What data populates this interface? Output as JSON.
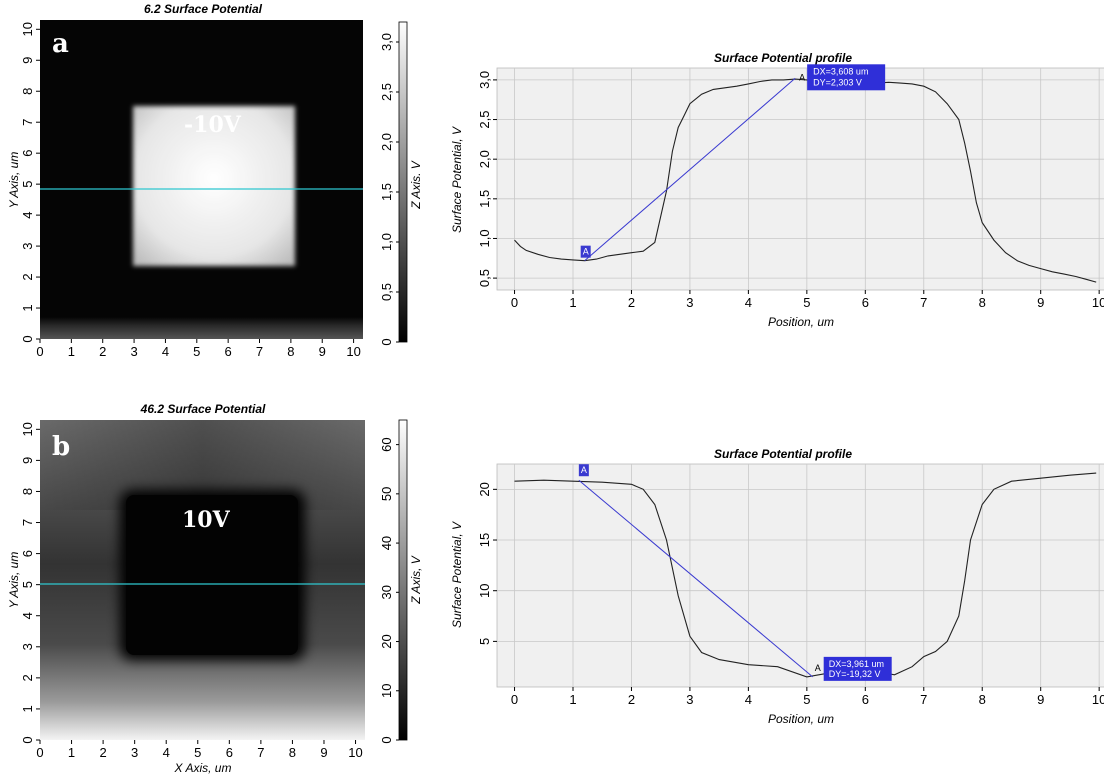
{
  "panel_a": {
    "letter": "a",
    "map_label": "-10V",
    "colorbar_max": 3.0
  },
  "panel_b": {
    "letter": "b",
    "map_label": "10V",
    "colorbar_max": 65
  },
  "chart_data": [
    {
      "type": "heatmap",
      "title": "6.2 Surface Potential",
      "xlabel": "",
      "ylabel": "Y Axis, um",
      "zlabel": "Z Axis, V",
      "xlim": [
        0,
        10.3
      ],
      "ylim": [
        0,
        10.3
      ],
      "x_ticks": [
        "0",
        "1",
        "2",
        "3",
        "4",
        "5",
        "6",
        "7",
        "8",
        "9",
        "10"
      ],
      "y_ticks": [
        "0",
        "1",
        "2",
        "3",
        "4",
        "5",
        "6",
        "7",
        "8",
        "9",
        "10"
      ],
      "z_ticks": [
        "0",
        "0,5",
        "1,0",
        "1,5",
        "2,0",
        "2,5",
        "3,0"
      ],
      "zlim": [
        0,
        3.2
      ],
      "square": {
        "x0": 2.8,
        "x1": 7.9,
        "y0": 2.4,
        "y1": 7.5,
        "value": 3.0
      },
      "background_value": 0.05,
      "scan_line_y": 4.8,
      "grid": false
    },
    {
      "type": "line",
      "title": "Surface Potential profile",
      "xlabel": "Position, um",
      "ylabel": "Surface Potential, V",
      "xlim": [
        -0.3,
        10.1
      ],
      "ylim": [
        0.35,
        3.15
      ],
      "x_ticks": [
        "0",
        "1",
        "2",
        "3",
        "4",
        "5",
        "6",
        "7",
        "8",
        "9",
        "10"
      ],
      "y_ticks": [
        "0,5",
        "1,0",
        "1,5",
        "2,0",
        "2,5",
        "3,0"
      ],
      "y_tick_values": [
        0.5,
        1.0,
        1.5,
        2.0,
        2.5,
        3.0
      ],
      "grid": true,
      "series": [
        {
          "x": [
            0.0,
            0.1,
            0.2,
            0.4,
            0.6,
            0.8,
            1.0,
            1.2,
            1.4,
            1.6,
            1.8,
            2.0,
            2.2,
            2.4,
            2.6,
            2.7,
            2.8,
            2.9,
            3.0,
            3.2,
            3.4,
            3.6,
            3.8,
            4.0,
            4.2,
            4.4,
            4.6,
            4.8,
            5.0,
            5.2,
            5.4,
            5.6,
            5.8,
            6.0,
            6.2,
            6.4,
            6.6,
            6.8,
            7.0,
            7.2,
            7.4,
            7.6,
            7.7,
            7.8,
            7.9,
            8.0,
            8.2,
            8.4,
            8.6,
            8.8,
            9.0,
            9.2,
            9.4,
            9.6,
            9.8,
            9.95
          ],
          "y": [
            0.98,
            0.9,
            0.85,
            0.8,
            0.76,
            0.74,
            0.73,
            0.72,
            0.74,
            0.78,
            0.8,
            0.82,
            0.84,
            0.95,
            1.6,
            2.1,
            2.4,
            2.55,
            2.7,
            2.82,
            2.88,
            2.9,
            2.92,
            2.95,
            2.98,
            3.0,
            3.0,
            3.01,
            3.0,
            2.98,
            2.97,
            2.98,
            2.98,
            2.97,
            2.96,
            2.97,
            2.96,
            2.95,
            2.92,
            2.85,
            2.7,
            2.5,
            2.2,
            1.85,
            1.45,
            1.2,
            0.98,
            0.82,
            0.72,
            0.66,
            0.62,
            0.58,
            0.55,
            0.52,
            0.48,
            0.45
          ]
        }
      ],
      "cursor": {
        "x1": 1.2,
        "y1": 0.72,
        "x2": 4.8,
        "y2": 3.02,
        "marker1": "A",
        "marker2": "A",
        "dx_text": "DX=3,608 um",
        "dy_text": "DY=2,303 V"
      }
    },
    {
      "type": "heatmap",
      "title": "46.2 Surface Potential",
      "xlabel": "X Axis, um",
      "ylabel": "Y Axis, um",
      "zlabel": "Z Axis, V",
      "xlim": [
        0,
        10.3
      ],
      "ylim": [
        0,
        10.3
      ],
      "x_ticks": [
        "0",
        "1",
        "2",
        "3",
        "4",
        "5",
        "6",
        "7",
        "8",
        "9",
        "10"
      ],
      "y_ticks": [
        "0",
        "1",
        "2",
        "3",
        "4",
        "5",
        "6",
        "7",
        "8",
        "9",
        "10"
      ],
      "z_ticks": [
        "0",
        "10",
        "20",
        "30",
        "40",
        "50",
        "60"
      ],
      "zlim": [
        0,
        65
      ],
      "square": {
        "x0": 2.6,
        "x1": 7.9,
        "y0": 2.5,
        "y1": 7.7,
        "value": 2
      },
      "background_value": 40,
      "scan_line_y": 4.8,
      "grid": false
    },
    {
      "type": "line",
      "title": "Surface Potential profile",
      "xlabel": "Position, um",
      "ylabel": "Surface Potential, V",
      "xlim": [
        -0.3,
        10.1
      ],
      "ylim": [
        0.5,
        22.5
      ],
      "x_ticks": [
        "0",
        "1",
        "2",
        "3",
        "4",
        "5",
        "6",
        "7",
        "8",
        "9",
        "10"
      ],
      "y_ticks": [
        "5",
        "10",
        "15",
        "20"
      ],
      "y_tick_values": [
        5,
        10,
        15,
        20
      ],
      "grid": true,
      "series": [
        {
          "x": [
            0.0,
            0.5,
            1.0,
            1.5,
            2.0,
            2.2,
            2.4,
            2.6,
            2.8,
            3.0,
            3.2,
            3.5,
            4.0,
            4.5,
            5.0,
            5.3,
            5.6,
            5.8,
            6.0,
            6.2,
            6.5,
            6.8,
            7.0,
            7.2,
            7.4,
            7.6,
            7.7,
            7.8,
            8.0,
            8.2,
            8.5,
            9.0,
            9.5,
            9.95
          ],
          "y": [
            20.8,
            20.9,
            20.8,
            20.7,
            20.5,
            20.0,
            18.5,
            15.0,
            9.5,
            5.5,
            3.9,
            3.2,
            2.7,
            2.5,
            1.5,
            1.8,
            2.2,
            2.0,
            2.3,
            2.0,
            1.7,
            2.5,
            3.5,
            4.0,
            5.0,
            7.5,
            11.0,
            15.0,
            18.5,
            20.0,
            20.8,
            21.1,
            21.4,
            21.6
          ]
        }
      ],
      "cursor": {
        "x1": 1.1,
        "y1": 20.9,
        "x2": 5.1,
        "y2": 1.5,
        "marker1": "A",
        "marker2": "A",
        "dx_text": "DX=3,961 um",
        "dy_text": "DY=-19,32 V"
      }
    }
  ]
}
